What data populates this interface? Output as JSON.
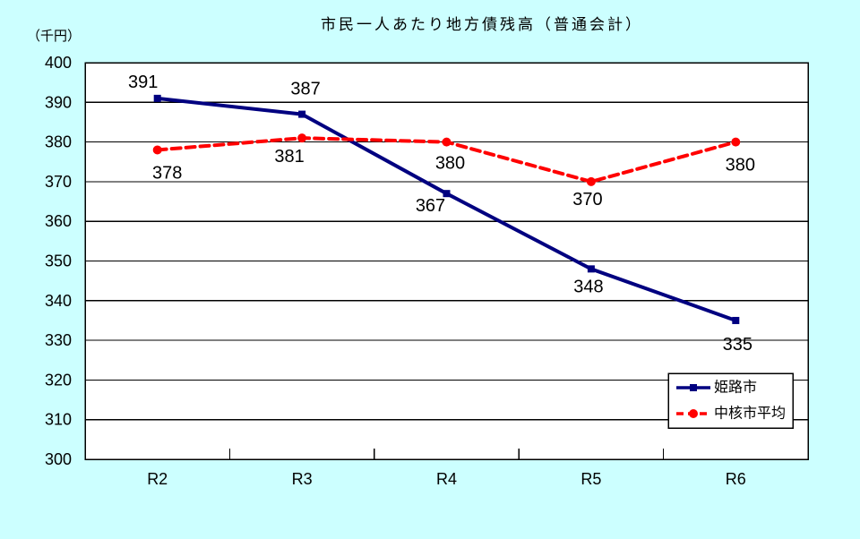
{
  "unit_label": "（千円）",
  "chart_data": {
    "type": "line",
    "title": "市民一人あたり地方債残高（普通会計）",
    "categories": [
      "R2",
      "R3",
      "R4",
      "R5",
      "R6"
    ],
    "series": [
      {
        "name": "姫路市",
        "values": [
          391,
          387,
          367,
          348,
          335
        ],
        "color": "#000080",
        "line_style": "solid",
        "marker": "square",
        "label_color": "#161640"
      },
      {
        "name": "中核市平均",
        "values": [
          378,
          381,
          380,
          370,
          380
        ],
        "color": "#ff0000",
        "line_style": "dashed",
        "marker": "circle",
        "label_color": "#ff3333"
      }
    ],
    "ylabel": "（千円）",
    "ylim": [
      300,
      400
    ],
    "ytick_step": 10,
    "xtick_labels": [
      "R2",
      "R3",
      "R4",
      "R5",
      "R6"
    ],
    "grid": true,
    "data_labels_shown": true,
    "legend": {
      "position": "inside-right",
      "entries": [
        "姫路市",
        "中核市平均"
      ]
    },
    "background_color": "#ccffff",
    "plot_background_color": "#ffffff",
    "axis_color": "#000000"
  }
}
